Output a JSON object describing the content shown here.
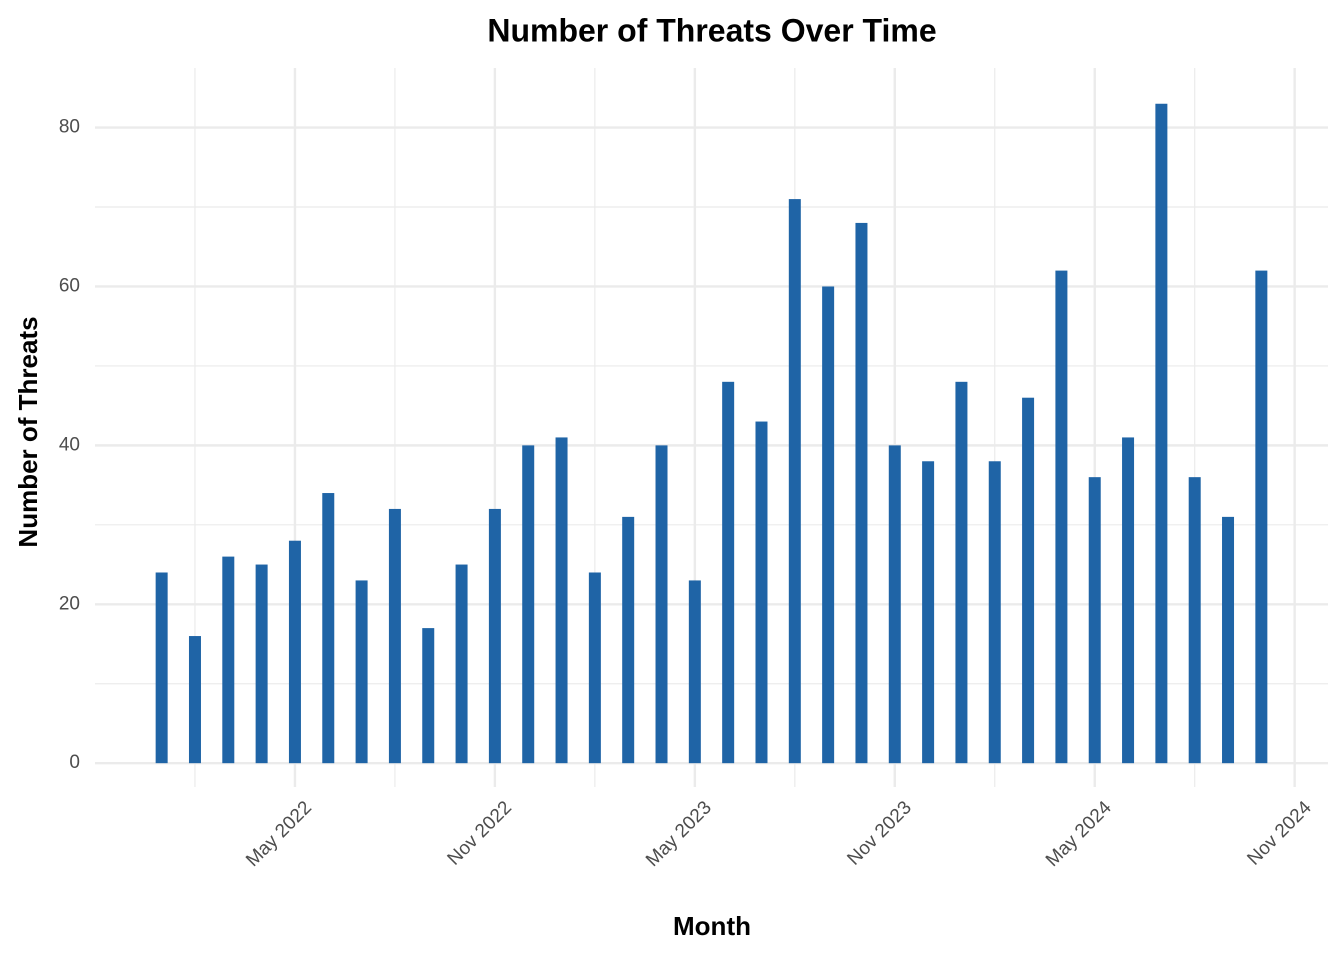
{
  "chart_data": {
    "type": "bar",
    "title": "Number of Threats Over Time",
    "x_label": "Month",
    "y_label": "Number of Threats",
    "x": [
      "2022-01",
      "2022-02",
      "2022-03",
      "2022-04",
      "2022-05",
      "2022-06",
      "2022-07",
      "2022-08",
      "2022-09",
      "2022-10",
      "2022-11",
      "2022-12",
      "2023-01",
      "2023-02",
      "2023-03",
      "2023-04",
      "2023-05",
      "2023-06",
      "2023-07",
      "2023-08",
      "2023-09",
      "2023-10",
      "2023-11",
      "2023-12",
      "2024-01",
      "2024-02",
      "2024-03",
      "2024-04",
      "2024-05",
      "2024-06",
      "2024-07",
      "2024-08",
      "2024-09",
      "2024-10"
    ],
    "values": [
      24,
      16,
      26,
      25,
      28,
      34,
      23,
      32,
      17,
      25,
      32,
      40,
      41,
      24,
      31,
      40,
      23,
      48,
      43,
      71,
      60,
      68,
      40,
      38,
      48,
      38,
      46,
      62,
      36,
      41,
      83,
      36,
      31,
      62
    ],
    "color": "#1f64a6",
    "xlim": [
      "2021-11",
      "2024-12"
    ],
    "xticks": [
      {
        "value": "2022-05",
        "label": "May 2022"
      },
      {
        "value": "2022-11",
        "label": "Nov 2022"
      },
      {
        "value": "2023-05",
        "label": "May 2023"
      },
      {
        "value": "2023-11",
        "label": "Nov 2023"
      },
      {
        "value": "2024-05",
        "label": "May 2024"
      },
      {
        "value": "2024-11",
        "label": "Nov 2024"
      }
    ],
    "ylim": [
      -3,
      87.5
    ],
    "yticks": [
      0,
      20,
      40,
      60,
      80
    ],
    "grid": true
  }
}
